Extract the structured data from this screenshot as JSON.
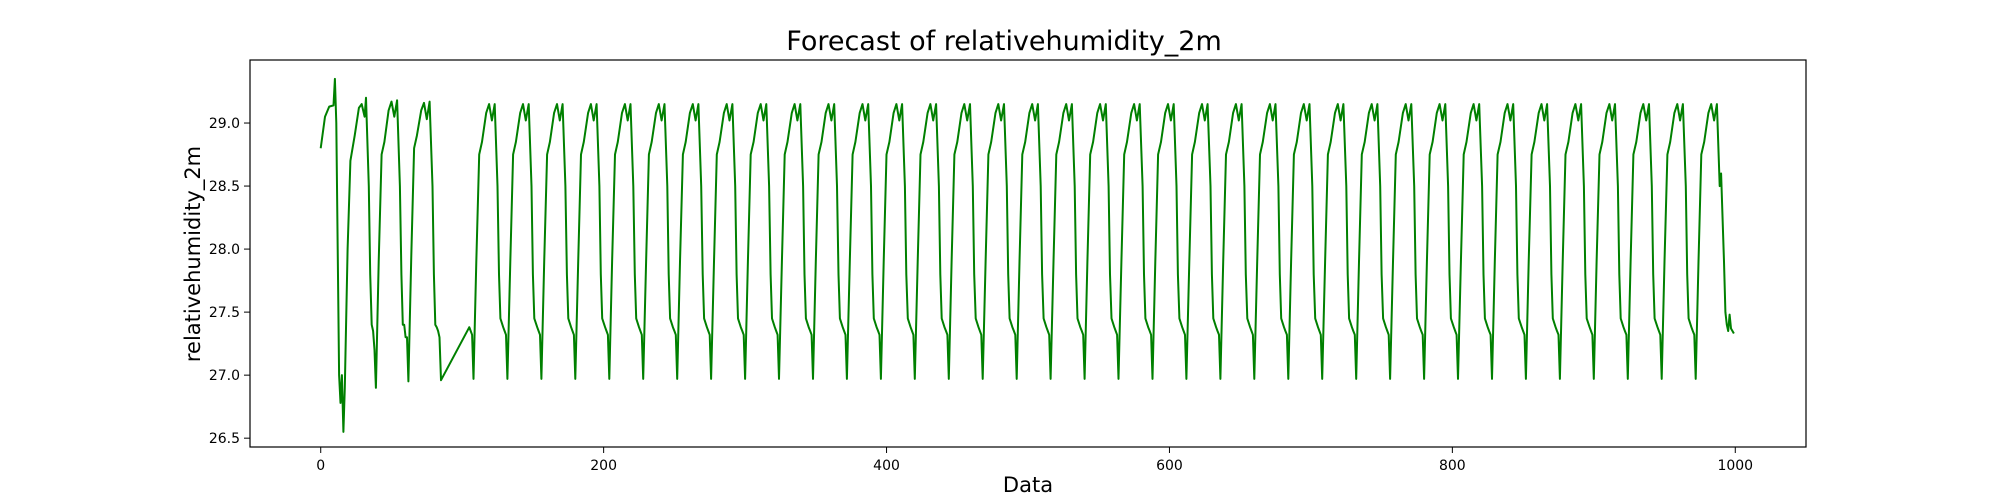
{
  "chart_data": {
    "type": "line",
    "title": "Forecast of relativehumidity_2m",
    "xlabel": "Data",
    "ylabel": "relativehumidity_2m",
    "xlim": [
      -50,
      1050
    ],
    "ylim": [
      26.43,
      29.5
    ],
    "xticks": [
      0,
      200,
      400,
      600,
      800,
      1000
    ],
    "yticks": [
      26.5,
      27.0,
      27.5,
      28.0,
      28.5,
      29.0
    ],
    "grid": false,
    "legend": "none",
    "series": [
      {
        "color": "#008000",
        "x_range": [
          0,
          999
        ],
        "period": 24,
        "points": [
          [
            0,
            28.8
          ],
          [
            3,
            29.05
          ],
          [
            6,
            29.13
          ],
          [
            9,
            29.14
          ],
          [
            10,
            29.35
          ],
          [
            11,
            29.0
          ],
          [
            12,
            28.0
          ],
          [
            13,
            27.0
          ],
          [
            14,
            26.78
          ],
          [
            15,
            27.0
          ],
          [
            16,
            26.55
          ],
          [
            17,
            26.9
          ],
          [
            19,
            28.0
          ],
          [
            21,
            28.7
          ],
          [
            24,
            28.9
          ],
          [
            27,
            29.12
          ],
          [
            29,
            29.15
          ],
          [
            31,
            29.05
          ],
          [
            32,
            29.2
          ],
          [
            34,
            28.5
          ],
          [
            35,
            27.8
          ],
          [
            36,
            27.4
          ],
          [
            37,
            27.35
          ],
          [
            38,
            27.2
          ],
          [
            39,
            26.9
          ],
          [
            41,
            27.9
          ],
          [
            43,
            28.75
          ],
          [
            45,
            28.85
          ],
          [
            48,
            29.1
          ],
          [
            50,
            29.17
          ],
          [
            52,
            29.05
          ],
          [
            54,
            29.18
          ],
          [
            56,
            28.5
          ],
          [
            57,
            27.8
          ],
          [
            58,
            27.4
          ],
          [
            59,
            27.4
          ],
          [
            60,
            27.3
          ],
          [
            61,
            27.3
          ],
          [
            62,
            26.95
          ],
          [
            64,
            27.95
          ],
          [
            66,
            28.8
          ],
          [
            68,
            28.9
          ],
          [
            71,
            29.1
          ],
          [
            73,
            29.16
          ],
          [
            75,
            29.03
          ],
          [
            77,
            29.17
          ],
          [
            79,
            28.5
          ],
          [
            80,
            27.8
          ],
          [
            81,
            27.4
          ],
          [
            82,
            27.38
          ],
          [
            83,
            27.35
          ],
          [
            84,
            27.3
          ],
          [
            85,
            26.96
          ]
        ],
        "pattern": [
          [
            0,
            27.38
          ],
          [
            1,
            27.35
          ],
          [
            2,
            27.32
          ],
          [
            3,
            26.97
          ],
          [
            5,
            27.9
          ],
          [
            7,
            28.75
          ],
          [
            9,
            28.85
          ],
          [
            12,
            29.08
          ],
          [
            14,
            29.15
          ],
          [
            16,
            29.02
          ],
          [
            18,
            29.15
          ],
          [
            20,
            28.5
          ],
          [
            21,
            27.8
          ],
          [
            22,
            27.45
          ]
        ],
        "pattern_start": 105,
        "final_points": [
          [
            990,
            28.6
          ],
          [
            992,
            27.9
          ],
          [
            993,
            27.5
          ],
          [
            994,
            27.4
          ],
          [
            995,
            27.35
          ],
          [
            996,
            27.48
          ],
          [
            997,
            27.37
          ],
          [
            999,
            27.33
          ]
        ]
      }
    ]
  }
}
